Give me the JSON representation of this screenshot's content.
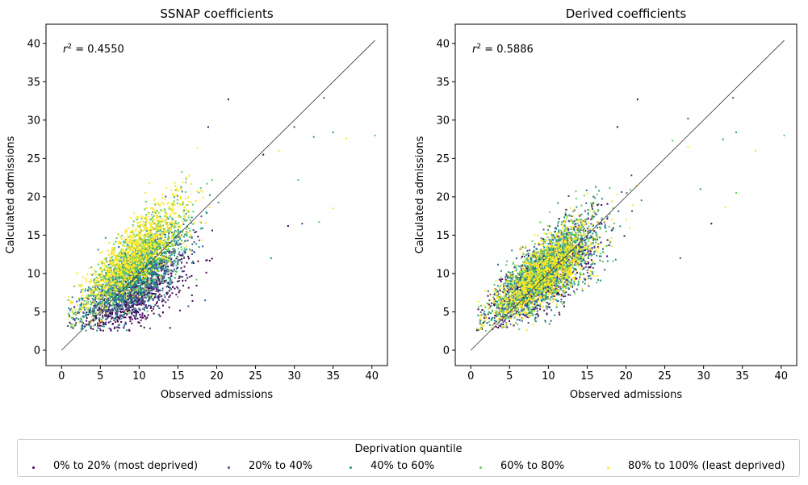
{
  "chart_data": [
    {
      "type": "scatter",
      "title": "SSNAP coefficients",
      "xlabel": "Observed admissions",
      "ylabel": "Calculated admissions",
      "annotation_r2": "0.4550",
      "xlim": [
        -2,
        42
      ],
      "ylim": [
        -2,
        42.5
      ],
      "xticks": [
        0,
        5,
        10,
        15,
        20,
        25,
        30,
        35,
        40
      ],
      "yticks": [
        0,
        5,
        10,
        15,
        20,
        25,
        30,
        35,
        40
      ],
      "identity_line": [
        [
          0,
          0
        ],
        [
          40.4,
          40.4
        ]
      ],
      "grid": false,
      "outliers": [
        [
          21.5,
          32.7
        ],
        [
          33.8,
          32.9
        ],
        [
          35.0,
          28.4
        ],
        [
          40.4,
          28.0
        ],
        [
          36.7,
          27.6
        ],
        [
          18.9,
          29.1
        ],
        [
          30.0,
          29.1
        ],
        [
          32.5,
          27.8
        ],
        [
          33.2,
          16.7
        ],
        [
          35.0,
          18.5
        ],
        [
          29.2,
          16.2
        ],
        [
          31.0,
          16.5
        ],
        [
          27.0,
          12.0
        ],
        [
          30.5,
          22.2
        ],
        [
          28.0,
          26.0
        ],
        [
          26.0,
          25.5
        ],
        [
          18.5,
          6.5
        ]
      ],
      "series_trend": [
        {
          "slope": 0.52,
          "intercept": 2.2,
          "spread": 1.6
        },
        {
          "slope": 0.6,
          "intercept": 3.0,
          "spread": 1.7
        },
        {
          "slope": 0.68,
          "intercept": 3.7,
          "spread": 1.8
        },
        {
          "slope": 0.76,
          "intercept": 4.2,
          "spread": 1.8
        },
        {
          "slope": 0.85,
          "intercept": 4.6,
          "spread": 1.8
        }
      ]
    },
    {
      "type": "scatter",
      "title": "Derived coefficients",
      "xlabel": "Observed admissions",
      "ylabel": "Calculated admissions",
      "annotation_r2": "0.5886",
      "xlim": [
        -2,
        42
      ],
      "ylim": [
        -2,
        42.5
      ],
      "xticks": [
        0,
        5,
        10,
        15,
        20,
        25,
        30,
        35,
        40
      ],
      "yticks": [
        0,
        5,
        10,
        15,
        20,
        25,
        30,
        35,
        40
      ],
      "identity_line": [
        [
          0,
          0
        ],
        [
          40.4,
          40.4
        ]
      ],
      "grid": false,
      "outliers": [
        [
          21.5,
          32.7
        ],
        [
          33.8,
          32.9
        ],
        [
          34.2,
          28.4
        ],
        [
          40.4,
          28.0
        ],
        [
          36.7,
          26.0
        ],
        [
          18.9,
          29.1
        ],
        [
          28.0,
          30.2
        ],
        [
          32.5,
          27.5
        ],
        [
          34.2,
          20.5
        ],
        [
          32.8,
          18.6
        ],
        [
          31.0,
          16.5
        ],
        [
          27.0,
          12.0
        ],
        [
          29.6,
          21.0
        ],
        [
          26.0,
          27.3
        ],
        [
          28.0,
          26.5
        ]
      ],
      "series_trend": [
        {
          "slope": 0.72,
          "intercept": 3.0,
          "spread": 1.8
        },
        {
          "slope": 0.73,
          "intercept": 3.0,
          "spread": 1.8
        },
        {
          "slope": 0.74,
          "intercept": 3.1,
          "spread": 1.8
        },
        {
          "slope": 0.74,
          "intercept": 3.2,
          "spread": 1.8
        },
        {
          "slope": 0.73,
          "intercept": 3.2,
          "spread": 1.8
        }
      ]
    }
  ],
  "legend": {
    "title": "Deprivation quantile",
    "placement": "bottom-center",
    "items": [
      {
        "label": "0% to 20% (most deprived)",
        "color": "#440154"
      },
      {
        "label": "20% to 40%",
        "color": "#3b528b"
      },
      {
        "label": "40% to 60%",
        "color": "#21918c"
      },
      {
        "label": "60% to 80%",
        "color": "#5ec962"
      },
      {
        "label": "80% to 100% (least deprived)",
        "color": "#fde725"
      }
    ]
  },
  "axis_color": "#000000",
  "identity_line_color": "#333333"
}
